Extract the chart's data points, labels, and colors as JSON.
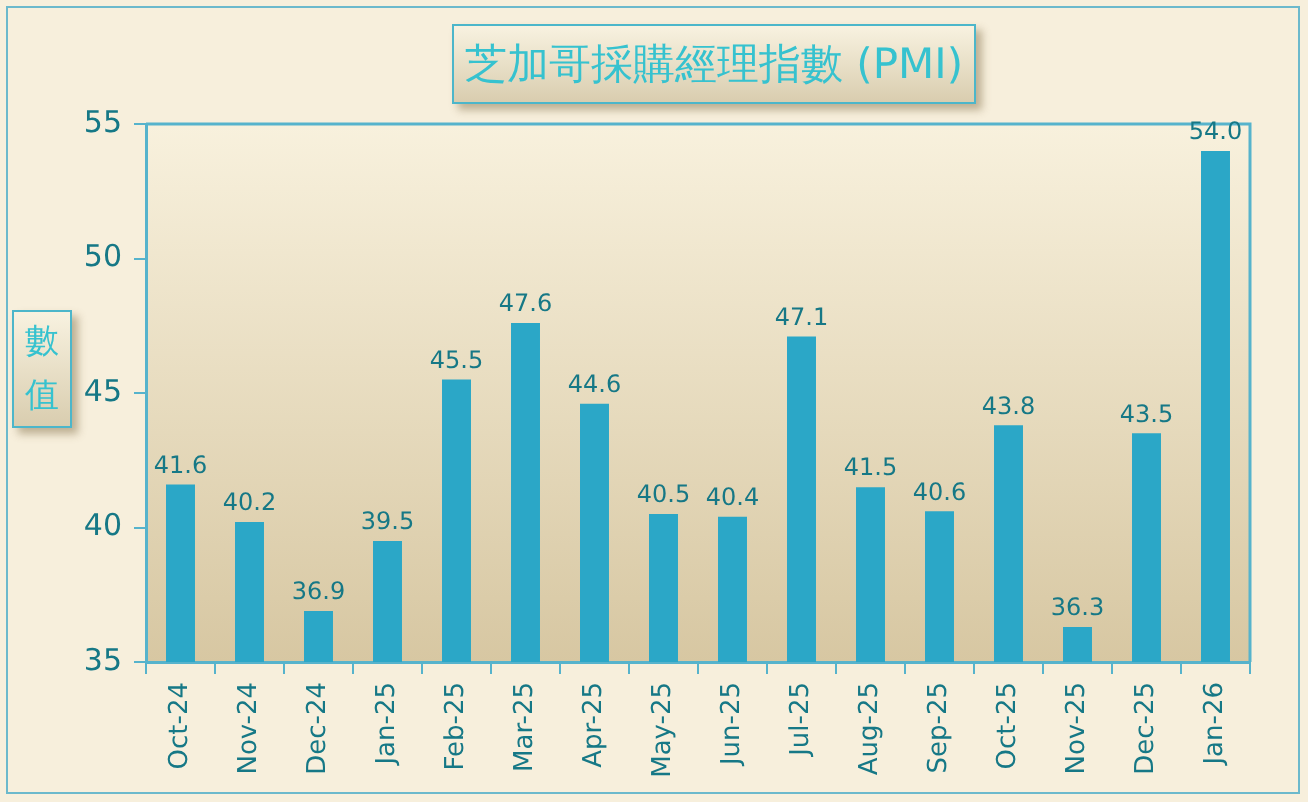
{
  "chart_data": {
    "type": "bar",
    "title": "芝加哥採購經理指數 (PMI)",
    "ylabel": "數值",
    "categories": [
      "Oct-24",
      "Nov-24",
      "Dec-24",
      "Jan-25",
      "Feb-25",
      "Mar-25",
      "Apr-25",
      "May-25",
      "Jun-25",
      "Jul-25",
      "Aug-25",
      "Sep-25",
      "Oct-25",
      "Nov-25",
      "Dec-25",
      "Jan-26"
    ],
    "values": [
      41.6,
      40.2,
      36.9,
      39.5,
      45.5,
      47.6,
      44.6,
      40.5,
      40.4,
      47.1,
      41.5,
      40.6,
      43.8,
      36.3,
      43.5,
      54.0
    ],
    "value_labels": [
      "41.6",
      "40.2",
      "36.9",
      "39.5",
      "45.5",
      "47.6",
      "44.6",
      "40.5",
      "40.4",
      "47.1",
      "41.5",
      "40.6",
      "43.8",
      "36.3",
      "43.5",
      "54.0"
    ],
    "color": "#2ba7c7",
    "ylim": [
      35,
      55
    ],
    "yticks": [
      35,
      40,
      45,
      50,
      55
    ]
  }
}
